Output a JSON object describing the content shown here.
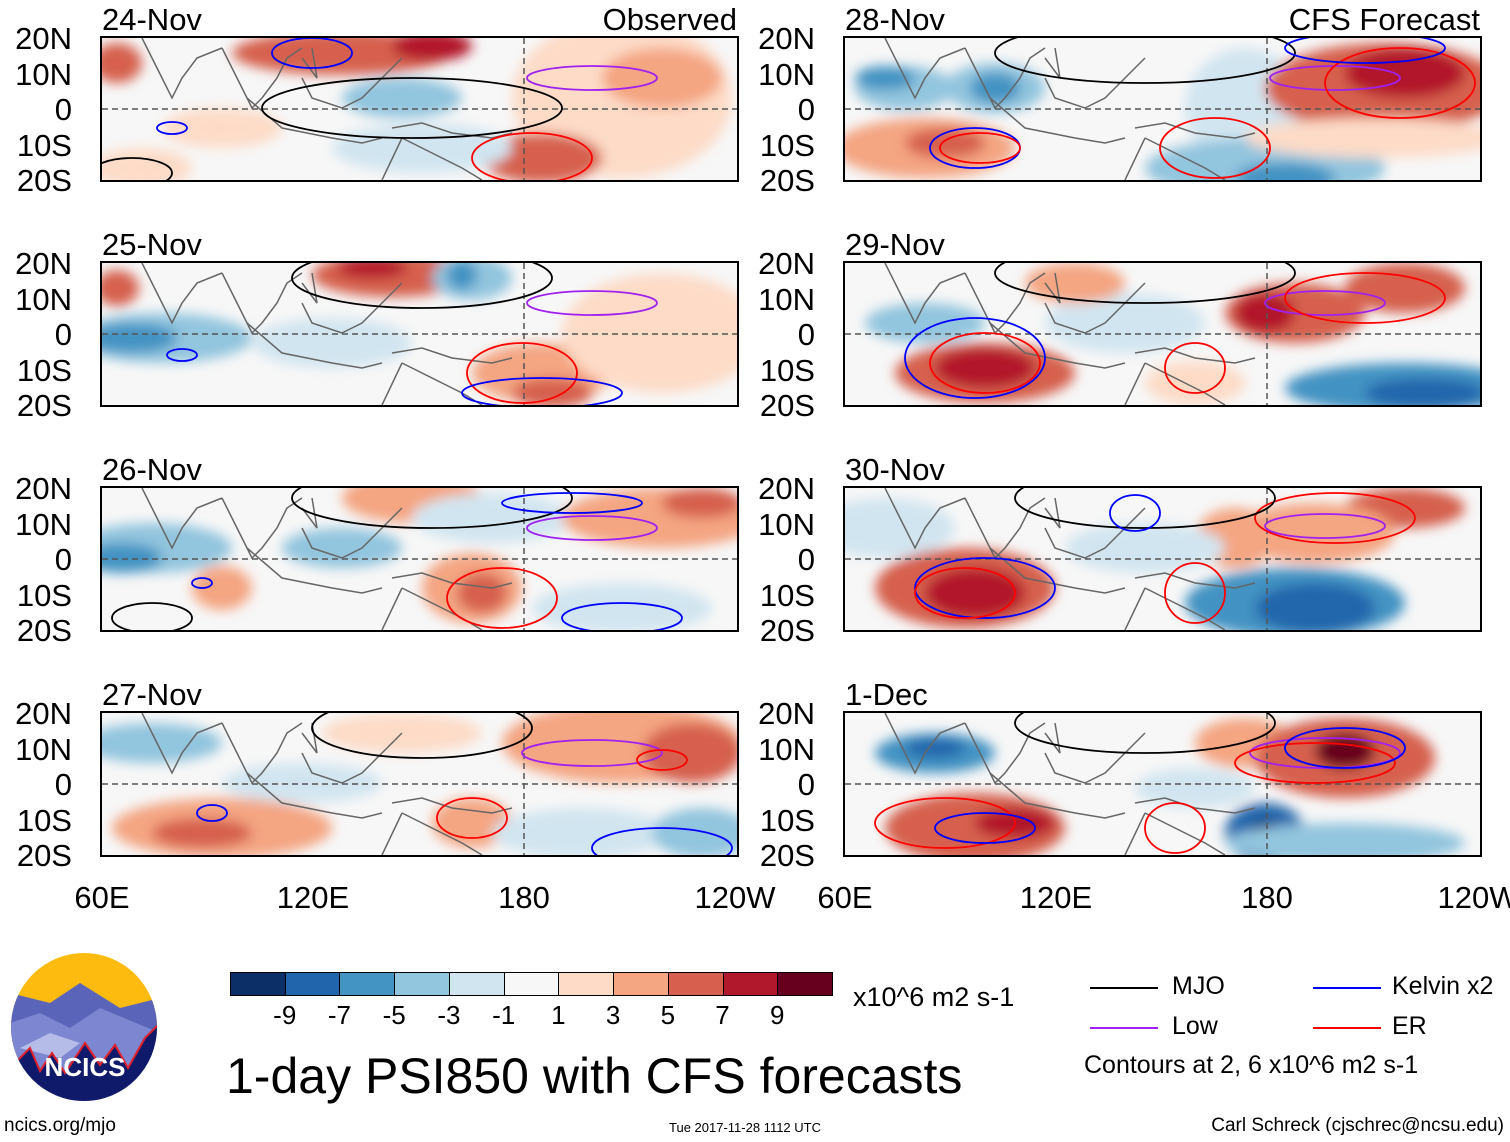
{
  "panels": [
    {
      "date": "24-Nov",
      "header": "Observed",
      "column": "observed"
    },
    {
      "date": "25-Nov",
      "column": "observed"
    },
    {
      "date": "26-Nov",
      "column": "observed"
    },
    {
      "date": "27-Nov",
      "column": "observed"
    },
    {
      "date": "28-Nov",
      "header": "CFS Forecast",
      "column": "forecast"
    },
    {
      "date": "29-Nov",
      "column": "forecast"
    },
    {
      "date": "30-Nov",
      "column": "forecast"
    },
    {
      "date": "1-Dec",
      "column": "forecast"
    }
  ],
  "lat_labels": [
    "20N",
    "10N",
    "0",
    "10S",
    "20S"
  ],
  "lon_labels": [
    "60E",
    "120E",
    "180",
    "120W"
  ],
  "colorbar": {
    "colors": [
      "#0b2f66",
      "#2166ac",
      "#4393c3",
      "#92c5de",
      "#d1e5f0",
      "#f7f7f7",
      "#fddbc7",
      "#f4a582",
      "#d6604d",
      "#b2182b",
      "#67001f"
    ],
    "ticks": [
      "-9",
      "-7",
      "-5",
      "-3",
      "-1",
      "1",
      "3",
      "5",
      "7",
      "9"
    ],
    "units": "x10^6 m2 s-1"
  },
  "legend": {
    "items": [
      {
        "label": "MJO",
        "color": "#000000"
      },
      {
        "label": "Kelvin x2",
        "color": "#0000ff"
      },
      {
        "label": "Low",
        "color": "#a020f0"
      },
      {
        "label": "ER",
        "color": "#ff0000"
      }
    ],
    "note": "Contours at 2, 6 x10^6 m2 s-1"
  },
  "title": "1-day PSI850 with CFS forecasts",
  "logo_text": "NCICS",
  "footer": {
    "left": "ncics.org/mjo",
    "center": "Tue 2017-11-28 1112 UTC",
    "right": "Carl Schreck (cjschrec@ncsu.edu)"
  }
}
